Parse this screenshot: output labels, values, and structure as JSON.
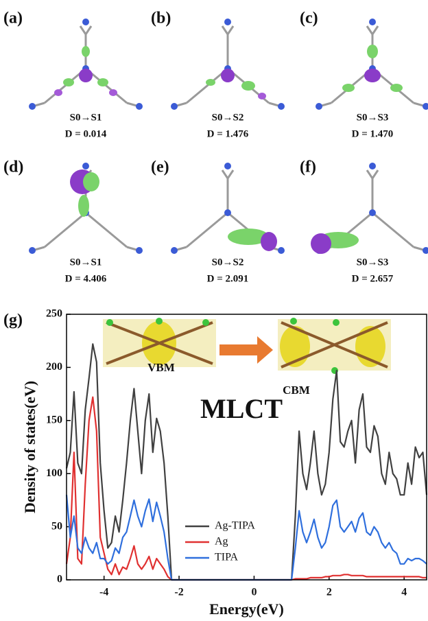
{
  "panels": [
    {
      "label": "(a)",
      "transition": "S0→S1",
      "d": "D = 0.014"
    },
    {
      "label": "(b)",
      "transition": "S0→S2",
      "d": "D = 1.476"
    },
    {
      "label": "(c)",
      "transition": "S0→S3",
      "d": "D = 1.470"
    },
    {
      "label": "(d)",
      "transition": "S0→S1",
      "d": "D = 4.406"
    },
    {
      "label": "(e)",
      "transition": "S0→S2",
      "d": "D = 2.091"
    },
    {
      "label": "(f)",
      "transition": "S0→S3",
      "d": "D = 2.657"
    }
  ],
  "chart_data": {
    "type": "line",
    "label": "(g)",
    "xlabel": "Energy(eV)",
    "ylabel": "Density of states(eV)",
    "annotations": [
      "VBM",
      "CBM",
      "MLCT"
    ],
    "x": [
      -5.0,
      -4.9,
      -4.8,
      -4.7,
      -4.6,
      -4.5,
      -4.4,
      -4.3,
      -4.2,
      -4.1,
      -4.0,
      -3.9,
      -3.8,
      -3.7,
      -3.6,
      -3.5,
      -3.4,
      -3.3,
      -3.2,
      -3.1,
      -3.0,
      -2.9,
      -2.8,
      -2.7,
      -2.6,
      -2.5,
      -2.4,
      -2.3,
      -2.2,
      -2.0,
      0,
      1.0,
      1.1,
      1.2,
      1.3,
      1.4,
      1.5,
      1.6,
      1.7,
      1.8,
      1.9,
      2.0,
      2.1,
      2.2,
      2.3,
      2.4,
      2.5,
      2.6,
      2.7,
      2.8,
      2.9,
      3.0,
      3.1,
      3.2,
      3.3,
      3.4,
      3.5,
      3.6,
      3.7,
      3.8,
      3.9,
      4.0,
      4.1,
      4.2,
      4.3,
      4.4,
      4.5,
      4.6
    ],
    "series": [
      {
        "name": "Ag-TIPA",
        "color": "#404040",
        "values": [
          105,
          120,
          177,
          110,
          100,
          160,
          190,
          222,
          205,
          110,
          65,
          30,
          35,
          60,
          45,
          75,
          110,
          150,
          180,
          140,
          100,
          150,
          175,
          120,
          152,
          140,
          110,
          60,
          0,
          0,
          0,
          0,
          60,
          140,
          100,
          85,
          110,
          140,
          100,
          80,
          90,
          120,
          170,
          197,
          130,
          125,
          140,
          150,
          110,
          160,
          175,
          125,
          120,
          145,
          135,
          100,
          90,
          120,
          100,
          95,
          80,
          80,
          110,
          90,
          125,
          115,
          120,
          80
        ]
      },
      {
        "name": "Ag",
        "color": "#e03030",
        "values": [
          15,
          40,
          120,
          20,
          15,
          90,
          150,
          172,
          140,
          40,
          25,
          10,
          5,
          15,
          5,
          12,
          10,
          20,
          32,
          15,
          10,
          15,
          22,
          10,
          20,
          15,
          10,
          3,
          0,
          0,
          0,
          0,
          1,
          1,
          1,
          1,
          2,
          2,
          2,
          2,
          3,
          3,
          4,
          4,
          4,
          5,
          5,
          4,
          4,
          4,
          4,
          3,
          3,
          3,
          3,
          3,
          3,
          3,
          3,
          3,
          3,
          3,
          3,
          3,
          3,
          3,
          2,
          2
        ]
      },
      {
        "name": "TIPA",
        "color": "#2f6fdd",
        "values": [
          80,
          40,
          60,
          30,
          25,
          40,
          30,
          25,
          35,
          20,
          20,
          15,
          18,
          30,
          25,
          40,
          45,
          60,
          75,
          60,
          50,
          65,
          76,
          55,
          73,
          60,
          45,
          20,
          0,
          0,
          0,
          0,
          30,
          65,
          45,
          35,
          45,
          57,
          40,
          30,
          35,
          50,
          70,
          75,
          50,
          45,
          50,
          55,
          45,
          58,
          63,
          45,
          42,
          50,
          45,
          35,
          30,
          35,
          28,
          25,
          15,
          15,
          20,
          18,
          20,
          20,
          18,
          15
        ]
      }
    ],
    "xlim": [
      -5,
      4.6
    ],
    "ylim": [
      0,
      250
    ],
    "xticks": [
      -4,
      -2,
      0,
      2,
      4
    ],
    "yticks": [
      0,
      50,
      100,
      150,
      200,
      250
    ]
  }
}
